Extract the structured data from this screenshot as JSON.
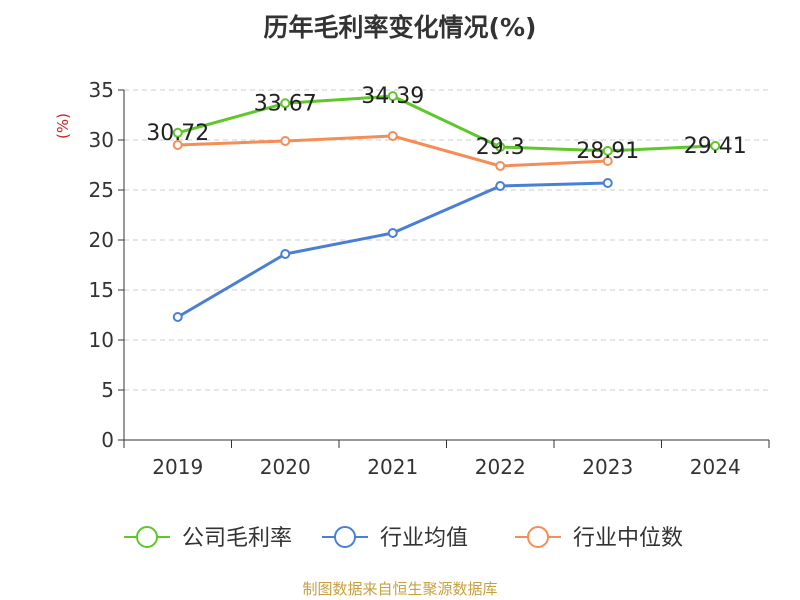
{
  "chart_data": {
    "type": "line",
    "title": "历年毛利率变化情况(%)",
    "ylabel": "(%)",
    "xlabel": "",
    "categories": [
      "2019",
      "2020",
      "2021",
      "2022",
      "2023",
      "2024"
    ],
    "ylim": [
      0,
      35
    ],
    "yticks": [
      0,
      5,
      10,
      15,
      20,
      25,
      30,
      35
    ],
    "grid": true,
    "legend_position": "bottom",
    "series": [
      {
        "name": "公司毛利率",
        "color": "#5ec72a",
        "values": [
          30.72,
          33.67,
          34.39,
          29.3,
          28.91,
          29.41
        ],
        "labels": [
          "30.72",
          "33.67",
          "34.39",
          "29.3",
          "28.91",
          "29.41"
        ]
      },
      {
        "name": "行业均值",
        "color": "#4a7fd8",
        "values": [
          12.3,
          18.6,
          20.7,
          25.4,
          25.7,
          null
        ]
      },
      {
        "name": "行业中位数",
        "color": "#f58d57",
        "values": [
          29.5,
          29.9,
          30.4,
          27.4,
          27.9,
          null
        ]
      }
    ],
    "source": "制图数据来自恒生聚源数据库"
  }
}
